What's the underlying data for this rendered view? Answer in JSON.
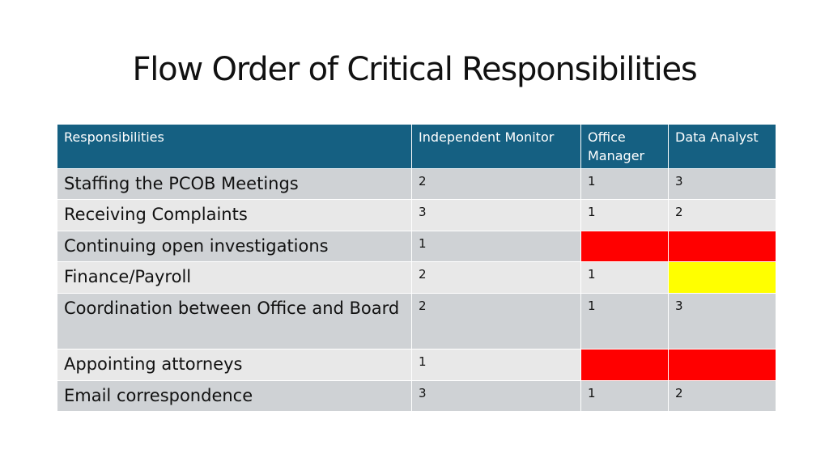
{
  "title": "Flow Order of Critical Responsibilities",
  "colors": {
    "header": "#156082",
    "row_dark": "#cfd2d5",
    "row_light": "#e8e8e8",
    "red": "#ff0000",
    "yellow": "#ffff00"
  },
  "table": {
    "headers": [
      "Responsibilities",
      "Independent Monitor",
      "Office Manager",
      "Data Analyst"
    ],
    "rows": [
      {
        "name": "Staffing the PCOB Meetings",
        "independent_monitor": "2",
        "office_manager": "1",
        "data_analyst": "3"
      },
      {
        "name": "Receiving Complaints",
        "independent_monitor": "3",
        "office_manager": "1",
        "data_analyst": "2"
      },
      {
        "name": "Continuing open investigations",
        "independent_monitor": "1",
        "office_manager": "",
        "data_analyst": "",
        "office_manager_highlight": "red",
        "data_analyst_highlight": "red"
      },
      {
        "name": "Finance/Payroll",
        "independent_monitor": "2",
        "office_manager": "1",
        "data_analyst": "",
        "data_analyst_highlight": "yellow"
      },
      {
        "name": "Coordination between Office and Board",
        "independent_monitor": "2",
        "office_manager": "1",
        "data_analyst": "3"
      },
      {
        "name": "Appointing attorneys",
        "independent_monitor": "1",
        "office_manager": "",
        "data_analyst": "",
        "office_manager_highlight": "red",
        "data_analyst_highlight": "red"
      },
      {
        "name": "Email correspondence",
        "independent_monitor": "3",
        "office_manager": "1",
        "data_analyst": "2"
      }
    ]
  }
}
